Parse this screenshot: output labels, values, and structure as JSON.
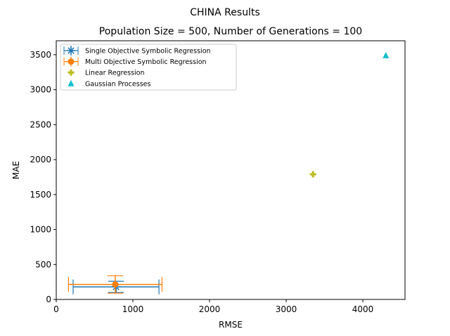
{
  "chart_data": {
    "type": "scatter",
    "suptitle": "CHINA Results",
    "title": "Population Size = 500, Number of Generations = 100",
    "xlabel": "RMSE",
    "ylabel": "MAE",
    "xlim": [
      0,
      4550
    ],
    "ylim": [
      0,
      3700
    ],
    "xticks": [
      0,
      1000,
      2000,
      3000,
      4000
    ],
    "yticks": [
      0,
      500,
      1000,
      1500,
      2000,
      2500,
      3000,
      3500
    ],
    "grid": false,
    "legend_position": "top-left",
    "series": [
      {
        "name": "Single Objective Symbolic Regression",
        "marker": "x-star",
        "color": "#1f77b4",
        "points": [
          {
            "x": 780,
            "y": 180,
            "xerr": 560,
            "yerr": 80
          }
        ]
      },
      {
        "name": "Multi Objective Symbolic Regression",
        "marker": "circle",
        "color": "#ff7f0e",
        "points": [
          {
            "x": 770,
            "y": 215,
            "xerr": 610,
            "yerr": 125
          }
        ]
      },
      {
        "name": "Linear Regression",
        "marker": "plus",
        "color": "#bcbd22",
        "points": [
          {
            "x": 3350,
            "y": 1790
          }
        ]
      },
      {
        "name": "Gaussian Processes",
        "marker": "triangle",
        "color": "#17becf",
        "points": [
          {
            "x": 4300,
            "y": 3490
          }
        ]
      }
    ]
  }
}
